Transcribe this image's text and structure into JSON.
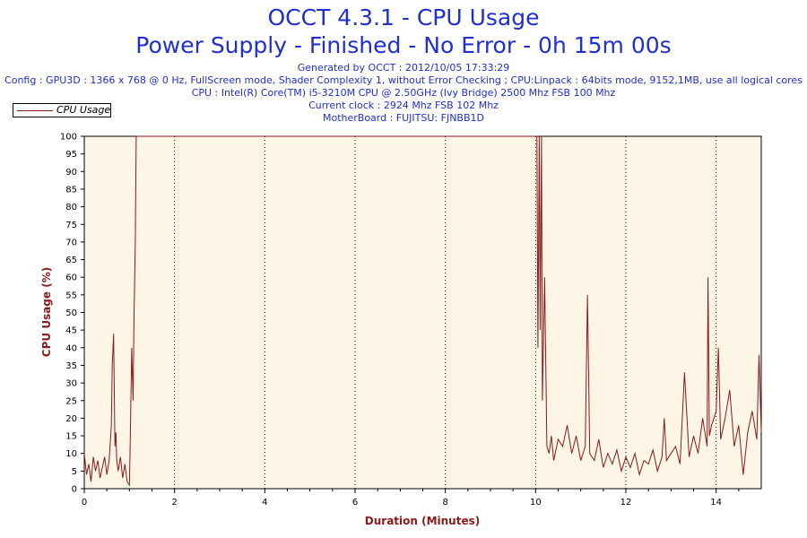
{
  "header": {
    "title_line1": "OCCT 4.3.1 - CPU Usage",
    "title_line2": "Power Supply - Finished - No Error - 0h 15m 00s",
    "generated": "Generated by OCCT : 2012/10/05 17:33:29",
    "config": "Config : GPU3D : 1366 x 768 @ 0 Hz, FullScreen mode, Shader Complexity 1, without Error Checking ; CPU:Linpack : 64bits mode, 9152,1MB, use all logical cores",
    "cpu": "CPU : Intel(R) Core(TM) i5-3210M CPU @ 2.50GHz (Ivy Bridge) 2500 Mhz FSB 100 Mhz",
    "clock": "Current clock : 2924 Mhz FSB 102 Mhz",
    "motherboard": "MotherBoard : FUJITSU: FJNBB1D"
  },
  "colors": {
    "plot_background": "#fdf5e6",
    "series": "#8b1a1a",
    "title": "#1f2fd0"
  },
  "chart_data": {
    "type": "line",
    "title": "OCCT 4.3.1 - CPU Usage",
    "xlabel": "Duration (Minutes)",
    "ylabel": "CPU Usage (%)",
    "xlim": [
      0,
      15
    ],
    "ylim": [
      0,
      100
    ],
    "x_ticks": [
      0,
      2,
      4,
      6,
      8,
      10,
      12,
      14
    ],
    "y_ticks": [
      0,
      5,
      10,
      15,
      20,
      25,
      30,
      35,
      40,
      45,
      50,
      55,
      60,
      65,
      70,
      75,
      80,
      85,
      90,
      95,
      100
    ],
    "grid": "vertical dotted at each x tick",
    "legend": "top-left",
    "series": [
      {
        "name": "CPU Usage",
        "x": [
          0,
          0.05,
          0.1,
          0.15,
          0.2,
          0.25,
          0.3,
          0.35,
          0.4,
          0.45,
          0.5,
          0.55,
          0.6,
          0.62,
          0.65,
          0.68,
          0.7,
          0.72,
          0.75,
          0.8,
          0.85,
          0.9,
          0.95,
          1.0,
          1.02,
          1.05,
          1.08,
          1.1,
          1.13,
          1.15,
          1.18,
          1.2,
          1.5,
          2.0,
          3.0,
          4.0,
          5.0,
          6.0,
          7.0,
          8.0,
          9.0,
          10.0,
          10.03,
          10.05,
          10.08,
          10.1,
          10.13,
          10.15,
          10.2,
          10.25,
          10.3,
          10.35,
          10.4,
          10.5,
          10.6,
          10.7,
          10.8,
          10.9,
          11.0,
          11.1,
          11.15,
          11.2,
          11.3,
          11.4,
          11.5,
          11.6,
          11.7,
          11.8,
          11.9,
          12.0,
          12.1,
          12.2,
          12.3,
          12.4,
          12.5,
          12.6,
          12.7,
          12.8,
          12.85,
          12.9,
          13.0,
          13.1,
          13.2,
          13.3,
          13.4,
          13.5,
          13.6,
          13.7,
          13.8,
          13.82,
          13.85,
          13.9,
          14.0,
          14.05,
          14.1,
          14.2,
          14.3,
          14.4,
          14.5,
          14.6,
          14.7,
          14.8,
          14.9,
          14.95,
          15.0
        ],
        "values": [
          10,
          4,
          7,
          2,
          9,
          5,
          8,
          3,
          6,
          9,
          4,
          8,
          18,
          35,
          44,
          12,
          16,
          8,
          5,
          9,
          3,
          7,
          2,
          1,
          14,
          40,
          25,
          48,
          70,
          100,
          100,
          100,
          100,
          100,
          100,
          100,
          100,
          100,
          100,
          100,
          100,
          100,
          100,
          40,
          100,
          45,
          100,
          25,
          60,
          12,
          10,
          15,
          8,
          14,
          12,
          18,
          10,
          15,
          8,
          12,
          55,
          10,
          8,
          14,
          6,
          10,
          7,
          11,
          5,
          9,
          6,
          10,
          4,
          8,
          7,
          11,
          5,
          9,
          20,
          8,
          10,
          12,
          7,
          33,
          9,
          15,
          10,
          20,
          12,
          60,
          15,
          18,
          22,
          40,
          14,
          20,
          28,
          12,
          18,
          4,
          16,
          22,
          14,
          38,
          16
        ]
      }
    ]
  }
}
